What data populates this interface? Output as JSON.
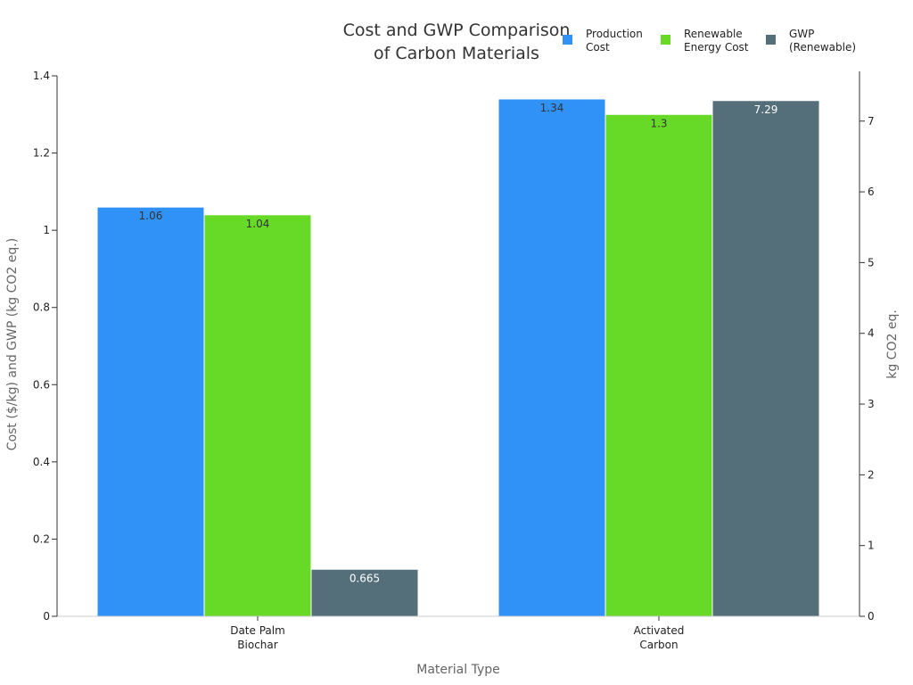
{
  "chart_data": {
    "type": "bar",
    "title_lines": [
      "Cost and GWP Comparison",
      "of Carbon Materials"
    ],
    "xlabel": "Material Type",
    "ylabel": "Cost ($/kg) and GWP (kg CO2 eq.)",
    "ylabel_right": "kg CO2 eq.",
    "categories": [
      {
        "lines": [
          "Date Palm",
          "Biochar"
        ]
      },
      {
        "lines": [
          "Activated",
          "Carbon"
        ]
      }
    ],
    "series": [
      {
        "name_lines": [
          "Production",
          "Cost"
        ],
        "values": [
          1.06,
          1.34
        ],
        "value_labels": [
          "1.06",
          "1.34"
        ],
        "color": "#3091F7",
        "label_color": "#333333",
        "axis": "left"
      },
      {
        "name_lines": [
          "Renewable",
          "Energy Cost"
        ],
        "values": [
          1.04,
          1.3
        ],
        "value_labels": [
          "1.04",
          "1.3"
        ],
        "color": "#67DA27",
        "label_color": "#333333",
        "axis": "left"
      },
      {
        "name_lines": [
          "GWP",
          "(Renewable)"
        ],
        "values": [
          0.665,
          7.29
        ],
        "value_labels": [
          "0.665",
          "7.29"
        ],
        "color": "#546E7A",
        "label_color": "#ffffff",
        "axis": "right"
      }
    ],
    "ylim": [
      0,
      1.4
    ],
    "yticks": [
      0,
      0.2,
      0.4,
      0.6,
      0.8,
      1,
      1.2,
      1.4
    ],
    "ytick_labels": [
      "0",
      "0.2",
      "0.4",
      "0.6",
      "0.8",
      "1",
      "1.2",
      "1.4"
    ],
    "ylim_right": [
      0,
      7.64
    ],
    "yticks_right": [
      0,
      1,
      2,
      3,
      4,
      5,
      6,
      7
    ],
    "ytick_labels_right": [
      "0",
      "1",
      "2",
      "3",
      "4",
      "5",
      "6",
      "7"
    ],
    "legend_position": "top-right",
    "grid": false
  }
}
